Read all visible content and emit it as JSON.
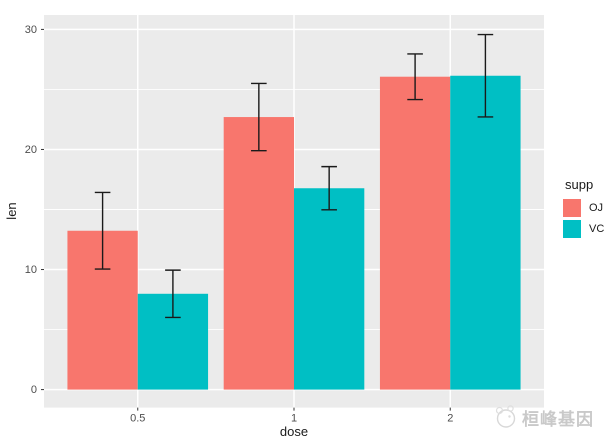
{
  "chart_data": {
    "type": "bar",
    "xlabel": "dose",
    "ylabel": "len",
    "categories": [
      "0.5",
      "1",
      "2"
    ],
    "series": [
      {
        "name": "OJ",
        "color": "#F8766D",
        "values": [
          13.23,
          22.7,
          26.06
        ],
        "error_low": [
          10.04,
          19.9,
          24.16
        ],
        "error_high": [
          16.42,
          25.5,
          27.96
        ]
      },
      {
        "name": "VC",
        "color": "#00BFC4",
        "values": [
          7.98,
          16.77,
          26.14
        ],
        "error_low": [
          6.01,
          14.97,
          22.71
        ],
        "error_high": [
          9.95,
          18.57,
          29.57
        ]
      }
    ],
    "y_ticks": [
      0,
      10,
      20,
      30
    ],
    "y_minor_ticks": [
      5,
      15,
      25
    ],
    "ylim": [
      -1.5,
      31.2
    ],
    "grid": true,
    "legend_title": "supp",
    "legend_position": "right",
    "panel_background": "#EBEBEB",
    "gridline_color": "#FFFFFF",
    "errorbar_color": "#1A1A1A",
    "axis_text_color": "#4D4D4D",
    "axis_title_color": "#1A1A1A",
    "tick_mark_color": "#333333"
  },
  "legend": {
    "title": "supp",
    "items": [
      {
        "label": "OJ",
        "color": "#F8766D"
      },
      {
        "label": "VC",
        "color": "#00BFC4"
      }
    ]
  },
  "watermark": {
    "text": "桓峰基因",
    "color": "#C9C9C9"
  }
}
